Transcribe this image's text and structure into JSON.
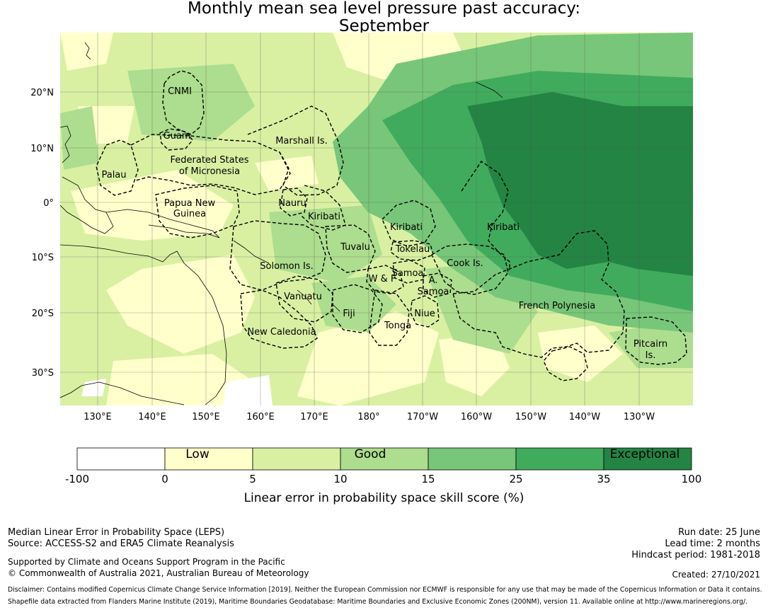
{
  "title": {
    "line1": "Monthly mean sea level pressure past accuracy:",
    "line2": "September"
  },
  "map": {
    "lat_labels": [
      "20°N",
      "10°N",
      "0°",
      "10°S",
      "20°S",
      "30°S"
    ],
    "lon_labels": [
      "130°E",
      "140°E",
      "150°E",
      "160°E",
      "170°E",
      "180°",
      "170°W",
      "160°W",
      "150°W",
      "140°W",
      "130°W"
    ],
    "regions": [
      "CNMI",
      "Guam",
      "Marshall Is.",
      "Federated States",
      "of Micronesia",
      "Palau",
      "Nauru",
      "Papua New",
      "Guinea",
      "Kiribati",
      "Kiribati",
      "Kiribati",
      "Tuvalu",
      "Tokelau",
      "Solomon Is.",
      "Samoa",
      "W & F",
      "A.",
      "Samoa",
      "Cook Is.",
      "Vanuatu",
      "Fiji",
      "Niue",
      "French Polynesia",
      "Tonga",
      "New Caledonia",
      "Pitcairn",
      "Is."
    ],
    "colors": {
      "lt0": "#ffffff",
      "c0_5": "#ffffcc",
      "c5_10": "#d9f0a3",
      "c10_15": "#addd8e",
      "c15_25": "#78c679",
      "c25_35": "#41ab5d",
      "c35_100": "#238443"
    }
  },
  "legend": {
    "categories": [
      "Low",
      "Good",
      "Exceptional"
    ],
    "ticks": [
      "-100",
      "0",
      "5",
      "10",
      "15",
      "25",
      "35",
      "100"
    ],
    "label": "Linear error in probability space skill score (%)",
    "colors": [
      "#ffffff",
      "#ffffcc",
      "#d9f0a3",
      "#addd8e",
      "#78c679",
      "#41ab5d",
      "#238443"
    ]
  },
  "info": {
    "left": [
      "Median Linear Error in Probability Space (LEPS)",
      "Source: ACCESS-S2 and ERA5 Climate Reanalysis",
      "Supported by Climate and Oceans Support Program in the Pacific",
      "© Commonwealth of Australia 2021, Australian Bureau of Meteorology"
    ],
    "right": [
      "Run date: 25 June",
      "Lead time: 2 months",
      "Hindcast period: 1981-2018",
      "Created: 27/10/2021"
    ],
    "disclaimer": [
      "Disclaimer: Contains modified Copernicus Climate Change Service Information [2019]. Neither the European Commission nor ECMWF is responsible for any use that may be made of the Copernicus Information or Data it contains.",
      "Shapefile data extracted from Flanders Marine Institute (2019), Maritime Boundaries Geodatabase: Maritime Boundaries and Exclusive Economic Zones (200NM), version 11. Available online at http://www.marineregions.org/."
    ]
  }
}
